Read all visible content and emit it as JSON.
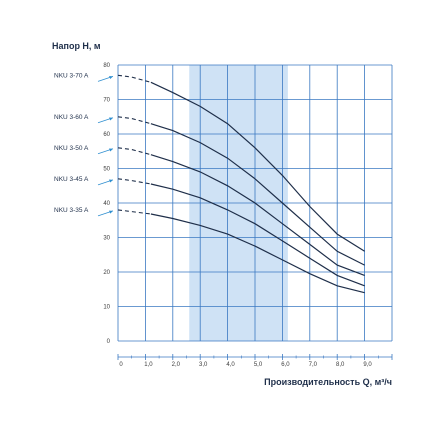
{
  "chart_data": {
    "type": "line",
    "ylabel": "Напор H, м",
    "xlabel": "Производительность Q, м³/ч",
    "xlim": [
      0,
      10
    ],
    "ylim": [
      0,
      80
    ],
    "xticks": [
      "0",
      "1,0",
      "2,0",
      "3,0",
      "4,0",
      "5,0",
      "6,0",
      "7,0",
      "8,0",
      "9,0"
    ],
    "yticks": [
      "0",
      "10",
      "20",
      "30",
      "40",
      "50",
      "60",
      "70",
      "80"
    ],
    "highlight_range": [
      2.6,
      6.2
    ],
    "grid": true,
    "colors": {
      "grid": "#3a78c2",
      "highlight": "#cfe2f5",
      "curve": "#1f2f4a",
      "arrow": "#2f8fd0"
    },
    "series": [
      {
        "name": "NKU 3-70 A",
        "x": [
          0,
          0.5,
          1.2,
          2.0,
          3.0,
          4.0,
          5.0,
          6.0,
          7.0,
          8.0,
          9.0
        ],
        "y": [
          77,
          76.5,
          75,
          72,
          68,
          63,
          56,
          48,
          39,
          31,
          26
        ]
      },
      {
        "name": "NKU 3-60 A",
        "x": [
          0,
          0.5,
          1.2,
          2.0,
          3.0,
          4.0,
          5.0,
          6.0,
          7.0,
          8.0,
          9.0
        ],
        "y": [
          65,
          64.5,
          63,
          61,
          57.5,
          53,
          47,
          40,
          33,
          26,
          22
        ]
      },
      {
        "name": "NKU 3-50 A",
        "x": [
          0,
          0.5,
          1.2,
          2.0,
          3.0,
          4.0,
          5.0,
          6.0,
          7.0,
          8.0,
          9.0
        ],
        "y": [
          56,
          55.5,
          54,
          52,
          49,
          45,
          40,
          34,
          28,
          22,
          19
        ]
      },
      {
        "name": "NKU 3-45 A",
        "x": [
          0,
          0.5,
          1.2,
          2.0,
          3.0,
          4.0,
          5.0,
          6.0,
          7.0,
          8.0,
          9.0
        ],
        "y": [
          47,
          46.5,
          45.5,
          44,
          41.5,
          38,
          34,
          29,
          24,
          19,
          16
        ]
      },
      {
        "name": "NKU 3-35 A",
        "x": [
          0,
          0.5,
          1.2,
          2.0,
          3.0,
          4.0,
          5.0,
          6.0,
          7.0,
          8.0,
          9.0
        ],
        "y": [
          38,
          37.5,
          36.8,
          35.5,
          33.5,
          31,
          27.5,
          23.5,
          19.5,
          16,
          14
        ]
      }
    ],
    "dashed_until_x": 1.6
  }
}
